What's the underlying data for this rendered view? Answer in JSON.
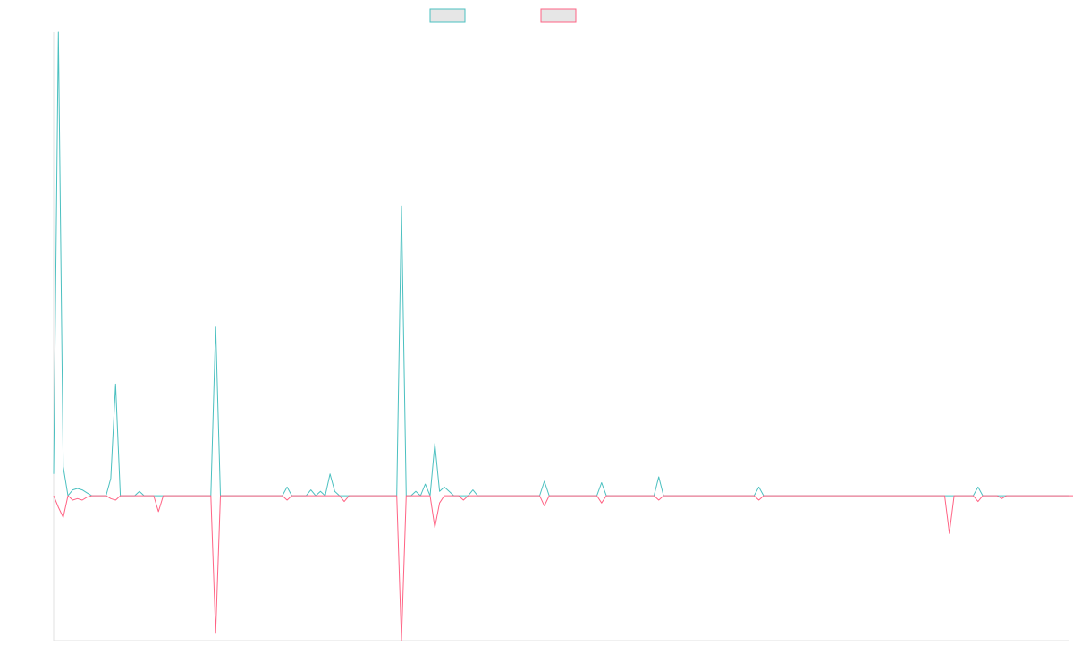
{
  "colors": {
    "axis": "#e0e0e0",
    "legend_fill": "#e6e6e6"
  },
  "chart_data": {
    "type": "line",
    "title": "",
    "xlabel": "",
    "ylabel": "",
    "grid": false,
    "legend_position": "top-center",
    "x_range": [
      0,
      213
    ],
    "ylim": [
      -100,
      320
    ],
    "series": [
      {
        "name": "",
        "color": "#4bc0c0",
        "values": [
          15,
          320,
          20,
          0,
          4,
          5,
          4,
          2,
          0,
          0,
          0,
          0,
          12,
          77,
          0,
          0,
          0,
          0,
          3,
          0,
          0,
          0,
          0,
          0,
          0,
          0,
          0,
          0,
          0,
          0,
          0,
          0,
          0,
          0,
          117,
          0,
          0,
          0,
          0,
          0,
          0,
          0,
          0,
          0,
          0,
          0,
          0,
          0,
          0,
          6,
          0,
          0,
          0,
          0,
          4,
          0,
          3,
          0,
          15,
          3,
          0,
          0,
          0,
          0,
          0,
          0,
          0,
          0,
          0,
          0,
          0,
          0,
          0,
          200,
          0,
          0,
          3,
          0,
          8,
          0,
          36,
          3,
          6,
          3,
          0,
          0,
          0,
          0,
          4,
          0,
          0,
          0,
          0,
          0,
          0,
          0,
          0,
          0,
          0,
          0,
          0,
          0,
          0,
          10,
          0,
          0,
          0,
          0,
          0,
          0,
          0,
          0,
          0,
          0,
          0,
          9,
          0,
          0,
          0,
          0,
          0,
          0,
          0,
          0,
          0,
          0,
          0,
          13,
          0,
          0,
          0,
          0,
          0,
          0,
          0,
          0,
          0,
          0,
          0,
          0,
          0,
          0,
          0,
          0,
          0,
          0,
          0,
          0,
          6,
          0,
          0,
          0,
          0,
          0,
          0,
          0,
          0,
          0,
          0,
          0,
          0,
          0,
          0,
          0,
          0,
          0,
          0,
          0,
          0,
          0,
          0,
          0,
          0,
          0,
          0,
          0,
          0,
          0,
          0,
          0,
          0,
          0,
          0,
          0,
          0,
          0,
          0,
          0,
          0,
          0,
          0,
          0,
          0,
          0,
          6,
          0,
          0,
          0,
          0,
          0,
          0,
          0,
          0,
          0,
          0,
          0,
          0,
          0,
          0,
          0,
          0,
          0,
          0,
          0
        ]
      },
      {
        "name": "",
        "color": "#ff6384",
        "values": [
          0,
          -8,
          -15,
          0,
          -3,
          -2,
          -3,
          -1,
          0,
          0,
          0,
          0,
          -2,
          -3,
          0,
          0,
          0,
          0,
          0,
          0,
          0,
          0,
          -11,
          0,
          0,
          0,
          0,
          0,
          0,
          0,
          0,
          0,
          0,
          0,
          -95,
          0,
          0,
          0,
          0,
          0,
          0,
          0,
          0,
          0,
          0,
          0,
          0,
          0,
          0,
          -3,
          0,
          0,
          0,
          0,
          0,
          0,
          0,
          0,
          0,
          0,
          0,
          -4,
          0,
          0,
          0,
          0,
          0,
          0,
          0,
          0,
          0,
          0,
          0,
          -100,
          0,
          0,
          0,
          0,
          0,
          0,
          -22,
          -5,
          0,
          0,
          0,
          0,
          -3,
          0,
          0,
          0,
          0,
          0,
          0,
          0,
          0,
          0,
          0,
          0,
          0,
          0,
          0,
          0,
          0,
          -7,
          0,
          0,
          0,
          0,
          0,
          0,
          0,
          0,
          0,
          0,
          0,
          -5,
          0,
          0,
          0,
          0,
          0,
          0,
          0,
          0,
          0,
          0,
          0,
          -3,
          0,
          0,
          0,
          0,
          0,
          0,
          0,
          0,
          0,
          0,
          0,
          0,
          0,
          0,
          0,
          0,
          0,
          0,
          0,
          0,
          -3,
          0,
          0,
          0,
          0,
          0,
          0,
          0,
          0,
          0,
          0,
          0,
          0,
          0,
          0,
          0,
          0,
          0,
          0,
          0,
          0,
          0,
          0,
          0,
          0,
          0,
          0,
          0,
          0,
          0,
          0,
          0,
          0,
          0,
          0,
          0,
          0,
          0,
          0,
          0,
          -26,
          0,
          0,
          0,
          0,
          0,
          -4,
          0,
          0,
          0,
          0,
          -2,
          0,
          0,
          0,
          0,
          0,
          0,
          0,
          0,
          0,
          0,
          0,
          0,
          0,
          0,
          0
        ]
      }
    ]
  }
}
